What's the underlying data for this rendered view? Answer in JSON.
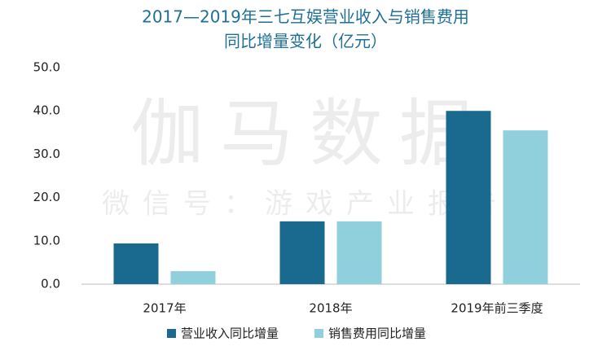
{
  "chart_data": {
    "type": "bar",
    "title": [
      "2017—2019年三七互娱营业收入与销售费用",
      "同比增量变化（亿元）"
    ],
    "watermark": [
      "伽马数据",
      "微信号：游戏产业报告"
    ],
    "categories": [
      "2017年",
      "2018年",
      "2019年前三季度"
    ],
    "series": [
      {
        "name": "营业收入同比增量",
        "color": "#1a6a8f",
        "values": [
          9.4,
          14.5,
          40.0
        ]
      },
      {
        "name": "销售费用同比增量",
        "color": "#8fd0dc",
        "values": [
          3.0,
          14.5,
          35.5
        ]
      }
    ],
    "ylim": [
      0,
      50
    ],
    "yticks": [
      {
        "value": 0,
        "label": "0.0"
      },
      {
        "value": 10,
        "label": "10.0"
      },
      {
        "value": 20,
        "label": "20.0"
      },
      {
        "value": 30,
        "label": "30.0"
      },
      {
        "value": 40,
        "label": "40.0"
      },
      {
        "value": 50,
        "label": "50.0"
      }
    ],
    "grid": false,
    "legend": "bottom"
  }
}
